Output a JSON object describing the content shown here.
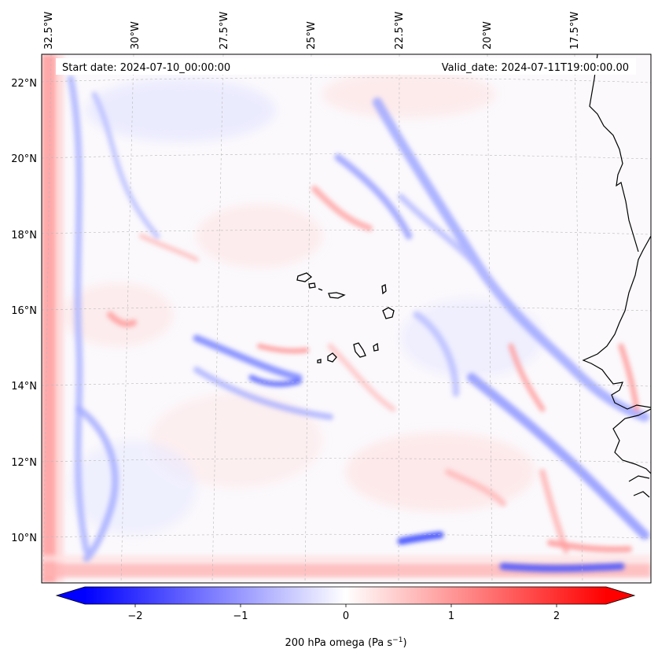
{
  "map": {
    "start_label": "Start date: 2024-07-10_00:00:00",
    "valid_label": "Valid_date: 2024-07-11T19:00:00.00",
    "lon_labels": [
      "32.5°W",
      "30°W",
      "27.5°W",
      "25°W",
      "22.5°W",
      "20°W",
      "17.5°W"
    ],
    "lat_labels": [
      "22°N",
      "20°N",
      "18°N",
      "16°N",
      "14°N",
      "12°N",
      "10°N"
    ],
    "extent": {
      "lon_min": -33.0,
      "lon_max": -16.2,
      "lat_min": 8.9,
      "lat_max": 22.8
    },
    "gridlines": true,
    "variable": "200 hPa omega",
    "colormap": "bwr",
    "colors": {
      "negative": "#0000ff",
      "zero": "#ffffff",
      "positive": "#ff0000",
      "coast": "#000000"
    }
  },
  "colorbar": {
    "label_text": "200 hPa omega (Pa s",
    "label_exp": "−1",
    "label_close": ")",
    "ticks": [
      "−2",
      "−1",
      "0",
      "1",
      "2"
    ],
    "range": [
      -2.6,
      2.6
    ],
    "extend": "both"
  }
}
